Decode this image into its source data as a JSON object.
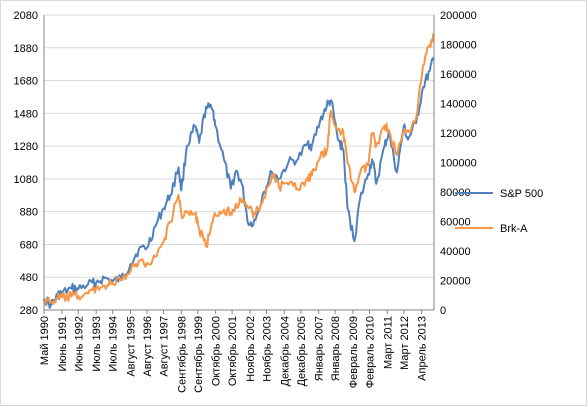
{
  "chart_data": {
    "type": "line",
    "title": "",
    "xlabel": "",
    "ylabel": "",
    "y_left": {
      "min": 280,
      "max": 2080,
      "ticks": [
        2080,
        1880,
        1680,
        1480,
        1280,
        1080,
        880,
        680,
        480,
        280
      ]
    },
    "y_right": {
      "min": 0,
      "max": 200000,
      "ticks": [
        200000,
        180000,
        160000,
        140000,
        120000,
        100000,
        80000,
        60000,
        40000,
        20000,
        0
      ]
    },
    "x_range": [
      "1990-05",
      "2014-01"
    ],
    "x_tick_labels": [
      {
        "label": "Май 1990",
        "date": "1990-05"
      },
      {
        "label": "Июнь 1991",
        "date": "1991-06"
      },
      {
        "label": "Июнь 1992",
        "date": "1992-06"
      },
      {
        "label": "Июль 1993",
        "date": "1993-07"
      },
      {
        "label": "Июль 1994",
        "date": "1994-07"
      },
      {
        "label": "Август 1995",
        "date": "1995-08"
      },
      {
        "label": "Август 1996",
        "date": "1996-08"
      },
      {
        "label": "Август 1997",
        "date": "1997-08"
      },
      {
        "label": "Сентябрь 1998",
        "date": "1998-09"
      },
      {
        "label": "Сентябрь 1999",
        "date": "1999-09"
      },
      {
        "label": "Октябрь 2000",
        "date": "2000-10"
      },
      {
        "label": "Октябрь 2001",
        "date": "2001-10"
      },
      {
        "label": "Ноябрь 2002",
        "date": "2002-11"
      },
      {
        "label": "Ноябрь 2003",
        "date": "2003-11"
      },
      {
        "label": "Декабрь 2004",
        "date": "2004-12"
      },
      {
        "label": "Декабрь 2005",
        "date": "2005-12"
      },
      {
        "label": "Январь 2007",
        "date": "2007-01"
      },
      {
        "label": "Январь 2008",
        "date": "2008-01"
      },
      {
        "label": "Февраль 2009",
        "date": "2009-02"
      },
      {
        "label": "Февраль 2010",
        "date": "2010-02"
      },
      {
        "label": "Март 2011",
        "date": "2011-03"
      },
      {
        "label": "Март 2012",
        "date": "2012-03"
      },
      {
        "label": "Апрель 2013",
        "date": "2013-04"
      }
    ],
    "legend": {
      "position": "right"
    },
    "series": [
      {
        "name": "S&P 500",
        "axis": "left",
        "color": "#4f81bd",
        "points": [
          [
            "1990-05",
            350
          ],
          [
            "1990-10",
            310
          ],
          [
            "1991-03",
            370
          ],
          [
            "1991-06",
            380
          ],
          [
            "1992-01",
            410
          ],
          [
            "1992-06",
            408
          ],
          [
            "1993-01",
            435
          ],
          [
            "1993-07",
            448
          ],
          [
            "1994-01",
            475
          ],
          [
            "1994-07",
            455
          ],
          [
            "1995-01",
            470
          ],
          [
            "1995-08",
            560
          ],
          [
            "1996-02",
            650
          ],
          [
            "1996-08",
            660
          ],
          [
            "1997-02",
            790
          ],
          [
            "1997-08",
            900
          ],
          [
            "1998-01",
            980
          ],
          [
            "1998-07",
            1150
          ],
          [
            "1998-09",
            1010
          ],
          [
            "1999-01",
            1280
          ],
          [
            "1999-07",
            1400
          ],
          [
            "1999-10",
            1300
          ],
          [
            "2000-03",
            1520
          ],
          [
            "2000-08",
            1500
          ],
          [
            "2000-10",
            1400
          ],
          [
            "2001-04",
            1200
          ],
          [
            "2001-09",
            1020
          ],
          [
            "2002-01",
            1130
          ],
          [
            "2002-05",
            1050
          ],
          [
            "2002-10",
            800
          ],
          [
            "2003-03",
            830
          ],
          [
            "2003-09",
            1000
          ],
          [
            "2004-03",
            1120
          ],
          [
            "2004-08",
            1080
          ],
          [
            "2005-03",
            1180
          ],
          [
            "2005-10",
            1200
          ],
          [
            "2006-05",
            1300
          ],
          [
            "2006-08",
            1280
          ],
          [
            "2007-02",
            1430
          ],
          [
            "2007-07",
            1530
          ],
          [
            "2007-10",
            1560
          ],
          [
            "2008-03",
            1320
          ],
          [
            "2008-07",
            1260
          ],
          [
            "2008-10",
            900
          ],
          [
            "2009-03",
            700
          ],
          [
            "2009-07",
            950
          ],
          [
            "2010-01",
            1110
          ],
          [
            "2010-04",
            1200
          ],
          [
            "2010-07",
            1050
          ],
          [
            "2011-01",
            1280
          ],
          [
            "2011-04",
            1360
          ],
          [
            "2011-10",
            1120
          ],
          [
            "2012-03",
            1400
          ],
          [
            "2012-06",
            1320
          ],
          [
            "2012-12",
            1420
          ],
          [
            "2013-05",
            1640
          ],
          [
            "2013-10",
            1740
          ],
          [
            "2014-01",
            1820
          ]
        ]
      },
      {
        "name": "Brk-A",
        "axis": "right",
        "color": "#f79646",
        "points": [
          [
            "1990-05",
            7000
          ],
          [
            "1990-10",
            5000
          ],
          [
            "1991-03",
            8000
          ],
          [
            "1991-06",
            8500
          ],
          [
            "1992-01",
            9000
          ],
          [
            "1992-06",
            9500
          ],
          [
            "1993-01",
            11000
          ],
          [
            "1993-07",
            15000
          ],
          [
            "1994-01",
            16500
          ],
          [
            "1994-07",
            18000
          ],
          [
            "1995-01",
            20000
          ],
          [
            "1995-08",
            26000
          ],
          [
            "1996-02",
            33000
          ],
          [
            "1996-08",
            32000
          ],
          [
            "1997-02",
            36000
          ],
          [
            "1997-08",
            46000
          ],
          [
            "1998-01",
            60000
          ],
          [
            "1998-07",
            78000
          ],
          [
            "1998-09",
            65000
          ],
          [
            "1999-01",
            66000
          ],
          [
            "1999-07",
            65000
          ],
          [
            "1999-10",
            55000
          ],
          [
            "2000-03",
            43000
          ],
          [
            "2000-08",
            60000
          ],
          [
            "2000-10",
            64000
          ],
          [
            "2001-04",
            68000
          ],
          [
            "2001-09",
            66000
          ],
          [
            "2002-01",
            72000
          ],
          [
            "2002-05",
            73000
          ],
          [
            "2002-10",
            69000
          ],
          [
            "2003-03",
            65000
          ],
          [
            "2003-09",
            76000
          ],
          [
            "2004-03",
            92000
          ],
          [
            "2004-08",
            84000
          ],
          [
            "2005-03",
            85000
          ],
          [
            "2005-10",
            82000
          ],
          [
            "2006-05",
            90000
          ],
          [
            "2006-08",
            91000
          ],
          [
            "2007-02",
            103000
          ],
          [
            "2007-07",
            108000
          ],
          [
            "2007-10",
            135000
          ],
          [
            "2008-03",
            122000
          ],
          [
            "2008-07",
            120000
          ],
          [
            "2008-10",
            100000
          ],
          [
            "2009-03",
            80000
          ],
          [
            "2009-07",
            92000
          ],
          [
            "2010-01",
            98000
          ],
          [
            "2010-04",
            120000
          ],
          [
            "2010-07",
            112000
          ],
          [
            "2011-01",
            125000
          ],
          [
            "2011-04",
            122000
          ],
          [
            "2011-10",
            105000
          ],
          [
            "2012-03",
            121000
          ],
          [
            "2012-06",
            122000
          ],
          [
            "2012-12",
            130000
          ],
          [
            "2013-05",
            166000
          ],
          [
            "2013-10",
            180000
          ],
          [
            "2014-01",
            185000
          ]
        ]
      }
    ]
  }
}
